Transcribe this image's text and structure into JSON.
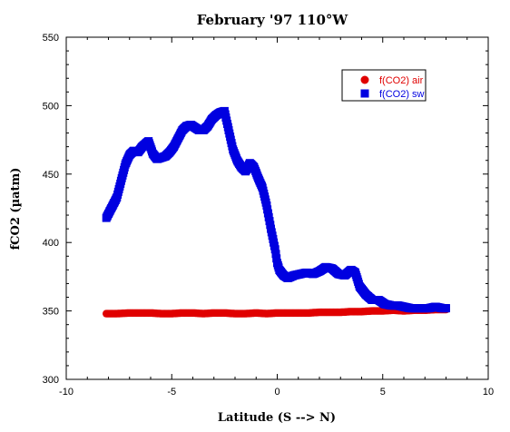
{
  "chart_data": {
    "type": "scatter",
    "title": "February '97 110°W",
    "xlabel": "Latitude (S --> N)",
    "ylabel": "fCO2 (µatm)",
    "xlim": [
      -10,
      10
    ],
    "ylim": [
      300,
      550
    ],
    "xticks": [
      -10,
      -5,
      0,
      5,
      10
    ],
    "yticks": [
      300,
      350,
      400,
      450,
      500,
      550
    ],
    "xtick_labels": [
      "-10",
      "-5",
      "0",
      "5",
      "10"
    ],
    "ytick_labels": [
      "300",
      "350",
      "400",
      "450",
      "500",
      "550"
    ],
    "legend_placement": "top-right",
    "series": [
      {
        "name": "f(CO2) air",
        "marker": "circle",
        "color": "#e00000",
        "x": [
          -8.1,
          -7.6,
          -7.0,
          -6.5,
          -6.0,
          -5.5,
          -5.0,
          -4.5,
          -4.0,
          -3.5,
          -3.0,
          -2.5,
          -2.0,
          -1.5,
          -1.0,
          -0.5,
          0.0,
          0.5,
          1.0,
          1.5,
          2.0,
          2.5,
          3.0,
          3.5,
          4.0,
          4.5,
          5.0,
          5.5,
          6.0,
          6.5,
          7.0,
          7.5,
          8.0
        ],
        "y": [
          348,
          348,
          348.5,
          348.5,
          348.5,
          348,
          348,
          348.5,
          348.5,
          348,
          348.5,
          348.5,
          348,
          348,
          348.5,
          348,
          348.5,
          348.5,
          348.5,
          348.5,
          349,
          349,
          349,
          349.5,
          349.5,
          350,
          350,
          350.5,
          350,
          350.5,
          350.5,
          351,
          351
        ]
      },
      {
        "name": "f(CO2) sw",
        "marker": "square",
        "color": "#0000e0",
        "x": [
          -8.1,
          -7.9,
          -7.6,
          -7.4,
          -7.2,
          -7.0,
          -6.8,
          -6.6,
          -6.4,
          -6.1,
          -5.9,
          -5.7,
          -5.5,
          -5.3,
          -5.1,
          -4.9,
          -4.7,
          -4.5,
          -4.3,
          -4.1,
          -3.9,
          -3.7,
          -3.5,
          -3.3,
          -3.1,
          -2.9,
          -2.7,
          -2.5,
          -2.3,
          -2.1,
          -1.9,
          -1.7,
          -1.5,
          -1.3,
          -1.1,
          -0.9,
          -0.7,
          -0.5,
          -0.3,
          -0.1,
          0.0,
          0.1,
          0.3,
          0.5,
          0.8,
          1.1,
          1.4,
          1.7,
          2.0,
          2.3,
          2.6,
          2.9,
          3.2,
          3.5,
          3.7,
          3.9,
          4.2,
          4.5,
          4.8,
          5.1,
          5.4,
          5.7,
          6.0,
          6.3,
          6.6,
          6.9,
          7.2,
          7.5,
          7.8,
          8.0
        ],
        "y": [
          418,
          424,
          433,
          445,
          457,
          464,
          467,
          466,
          470,
          474,
          465,
          461,
          462,
          463,
          466,
          470,
          476,
          482,
          485,
          486,
          484,
          482,
          482,
          485,
          490,
          493,
          495,
          496,
          482,
          468,
          460,
          455,
          452,
          458,
          455,
          447,
          440,
          427,
          410,
          395,
          385,
          380,
          376,
          374,
          376,
          377,
          378,
          377,
          379,
          382,
          381,
          377,
          376,
          380,
          378,
          368,
          362,
          358,
          358,
          355,
          354,
          354,
          353,
          352,
          352,
          352,
          352,
          353,
          352,
          352
        ]
      }
    ]
  }
}
